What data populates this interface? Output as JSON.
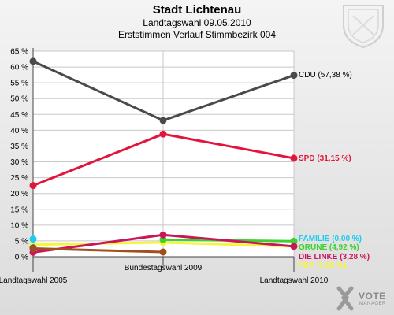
{
  "header": {
    "title": "Stadt Lichtenau",
    "subtitle": "Landtagswahl 09.05.2010",
    "subtitle2": "Erststimmen Verlauf Stimmbezirk 004"
  },
  "logo": {
    "text": "VOTE",
    "subtext": "MANAGER"
  },
  "colors": {
    "grid": "#c8c8c8",
    "axis": "#444444"
  },
  "chart_data": {
    "type": "line",
    "x": [
      "Landtagswahl 2005",
      "Bundestagswahl 2009",
      "Landtagswahl 2010"
    ],
    "ylim": [
      0,
      65
    ],
    "yticks": [
      0,
      5,
      10,
      15,
      20,
      25,
      30,
      35,
      40,
      45,
      50,
      55,
      60,
      65
    ],
    "ytick_labels": [
      "0 %",
      "5 %",
      "10 %",
      "15 %",
      "20 %",
      "25 %",
      "30 %",
      "35 %",
      "40 %",
      "45 %",
      "50 %",
      "55 %",
      "60 %",
      "65 %"
    ],
    "grid": true,
    "series": [
      {
        "name": "CDU",
        "label": "CDU (57,38 %)",
        "color": "#4a4a4a",
        "values": [
          61.8,
          43.1,
          57.38
        ]
      },
      {
        "name": "SPD",
        "label": "SPD (31,15 %)",
        "color": "#e2163c",
        "values": [
          22.5,
          38.8,
          31.15
        ]
      },
      {
        "name": "FDP",
        "label": "FDP (3,28 %)",
        "color": "#f5f53a",
        "values": [
          3.8,
          4.5,
          3.28
        ]
      },
      {
        "name": "GRÜNE",
        "label": "GRÜNE (4,92 %)",
        "color": "#3cd12c",
        "values": [
          null,
          5.4,
          4.92
        ]
      },
      {
        "name": "DIE LINKE",
        "label": "DIE LINKE (3,28 %)",
        "color": "#c8165a",
        "values": [
          1.4,
          6.9,
          3.28
        ]
      },
      {
        "name": "FAMILIE",
        "label": "FAMILIE (0,00 %)",
        "color": "#18cdee",
        "values": [
          5.6,
          null,
          null
        ]
      },
      {
        "name": "",
        "label": "",
        "color": "#2c3cc8",
        "values": [
          2.8,
          null,
          null
        ]
      },
      {
        "name": "",
        "label": "",
        "color": "#a0501e",
        "values": [
          2.6,
          1.5,
          null
        ]
      }
    ]
  }
}
